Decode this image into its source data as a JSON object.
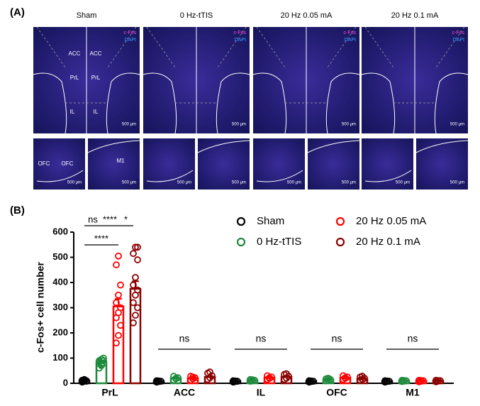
{
  "panel_a": {
    "label": "(A)",
    "columns": [
      "Sham",
      "0 Hz-tTIS",
      "20 Hz 0.05 mA",
      "20 Hz 0.1 mA"
    ],
    "channels": [
      "c-Fos",
      "DAPI"
    ],
    "regions": [
      "ACC",
      "PrL",
      "IL",
      "OFC",
      "M1"
    ],
    "scale_bar": "500 μm"
  },
  "panel_b_label": "(B)",
  "chart_data": {
    "type": "bar",
    "y_label": "c-Fos+ cell number",
    "categories": [
      "PrL",
      "ACC",
      "IL",
      "OFC",
      "M1"
    ],
    "ylim": [
      0,
      600
    ],
    "yticks": [
      0,
      100,
      200,
      300,
      400,
      500,
      600
    ],
    "annotations": [
      "ns",
      "****",
      "*",
      "****",
      "ns",
      "ns",
      "ns",
      "ns"
    ],
    "series": [
      {
        "name": "Sham",
        "color": "#000000",
        "values": [
          10,
          8,
          8,
          8,
          8
        ],
        "errors": [
          2,
          1,
          1,
          1,
          1
        ],
        "points": [
          [
            5,
            8,
            10,
            12,
            15,
            8,
            10,
            12
          ],
          [
            5,
            7,
            8,
            10,
            9
          ],
          [
            5,
            7,
            8,
            10,
            9
          ],
          [
            5,
            7,
            8,
            10,
            9
          ],
          [
            5,
            7,
            8,
            10,
            9
          ]
        ]
      },
      {
        "name": "0 Hz-tTIS",
        "color": "#1e8a3c",
        "values": [
          85,
          20,
          12,
          15,
          10
        ],
        "errors": [
          5,
          3,
          2,
          2,
          1
        ],
        "points": [
          [
            60,
            70,
            80,
            90,
            95,
            100,
            85,
            75,
            90
          ],
          [
            12,
            18,
            22,
            28,
            20
          ],
          [
            8,
            10,
            12,
            15,
            14
          ],
          [
            10,
            12,
            15,
            18,
            20
          ],
          [
            7,
            9,
            10,
            12,
            11
          ]
        ]
      },
      {
        "name": "20 Hz 0.05 mA",
        "color": "#ff0000",
        "values": [
          305,
          20,
          22,
          22,
          10
        ],
        "errors": [
          30,
          3,
          3,
          3,
          1
        ],
        "points": [
          [
            160,
            190,
            230,
            260,
            280,
            300,
            320,
            350,
            390,
            470,
            505
          ],
          [
            12,
            18,
            22,
            28,
            25
          ],
          [
            15,
            20,
            25,
            30,
            22
          ],
          [
            15,
            20,
            25,
            30,
            22
          ],
          [
            6,
            9,
            10,
            12,
            11
          ]
        ]
      },
      {
        "name": "20 Hz 0.1 mA",
        "color": "#8b0000",
        "values": [
          375,
          25,
          25,
          18,
          10
        ],
        "errors": [
          30,
          4,
          3,
          3,
          1
        ],
        "points": [
          [
            240,
            270,
            300,
            320,
            350,
            370,
            390,
            420,
            490,
            515,
            540,
            540
          ],
          [
            15,
            22,
            30,
            40,
            45
          ],
          [
            15,
            20,
            28,
            35,
            38
          ],
          [
            12,
            16,
            20,
            25,
            28
          ],
          [
            6,
            9,
            10,
            12,
            11
          ]
        ]
      }
    ]
  }
}
